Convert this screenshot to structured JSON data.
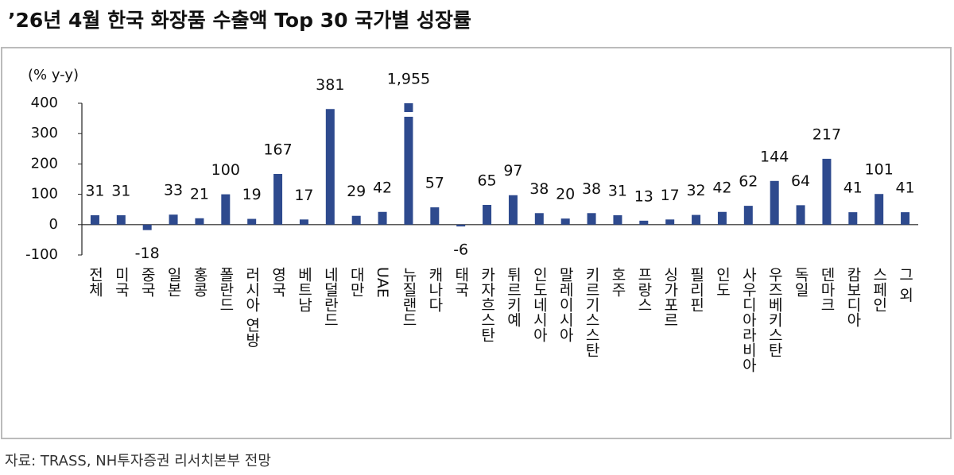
{
  "chart_data": {
    "type": "bar",
    "title": "’26년 4월 한국 화장품 수출액 Top 30 국가별 성장률",
    "y_label": "(% y-y)",
    "source": "자료: TRASS, NH투자증권 리서치본부 전망",
    "categories": [
      "전체",
      "미국",
      "중국",
      "일본",
      "홍콩",
      "폴란드",
      "러시아 연방",
      "영국",
      "베트남",
      "네덜란드",
      "대만",
      "UAE",
      "뉴질랜드",
      "캐나다",
      "태국",
      "카자흐스탄",
      "튀르키예",
      "인도네시아",
      "말레이시아",
      "키르기스스탄",
      "호주",
      "프랑스",
      "싱가포르",
      "필리핀",
      "인도",
      "사우디아라비아",
      "우즈베키스탄",
      "독일",
      "덴마크",
      "캄보디아",
      "스페인",
      "그 외"
    ],
    "values": [
      31,
      31,
      -18,
      33,
      21,
      100,
      19,
      167,
      17,
      381,
      29,
      42,
      1955,
      57,
      -6,
      65,
      97,
      38,
      20,
      38,
      31,
      13,
      17,
      32,
      42,
      62,
      144,
      64,
      217,
      41,
      101,
      41
    ],
    "value_labels": [
      "31",
      "31",
      "-18",
      "33",
      "21",
      "100",
      "19",
      "167",
      "17",
      "381",
      "29",
      "42",
      "1,955",
      "57",
      "-6",
      "65",
      "97",
      "38",
      "20",
      "38",
      "31",
      "13",
      "17",
      "32",
      "42",
      "62",
      "144",
      "64",
      "217",
      "41",
      "101",
      "41"
    ],
    "color": "#2e4a8e",
    "ylim": [
      -100,
      400
    ],
    "yticks": [
      -100,
      0,
      100,
      200,
      300,
      400
    ],
    "grid": false
  }
}
